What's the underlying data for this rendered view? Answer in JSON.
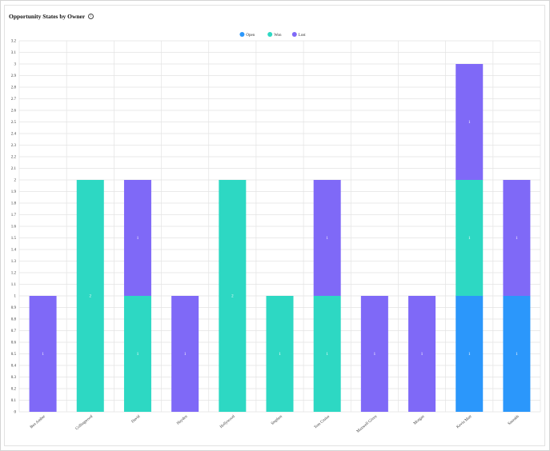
{
  "header": {
    "title": "Opportunity States by Owner"
  },
  "colors": {
    "Open": "#2b97fb",
    "Won": "#2dd8c3",
    "Lost": "#7f69f7",
    "grid": "#e3e3e3"
  },
  "icons": {
    "info": "info-circle-icon"
  },
  "chart_data": {
    "type": "bar",
    "stacked": true,
    "title": "",
    "xlabel": "",
    "ylabel": "",
    "ylim": [
      0,
      3.2
    ],
    "ytick_step": 0.1,
    "grid": true,
    "legend_position": "top-center",
    "categories": [
      "Ben Amber",
      "Collingwood",
      "David",
      "Hayden",
      "Hollywood",
      "Stephen",
      "Tom Cruise",
      "Maxwell Given",
      "Morgan",
      "Kevin Matt",
      "Saurabh"
    ],
    "series": [
      {
        "name": "Open",
        "values": [
          0,
          0,
          0,
          0,
          0,
          0,
          0,
          0,
          0,
          1,
          1
        ]
      },
      {
        "name": "Won",
        "values": [
          0,
          2,
          1,
          0,
          2,
          1,
          1,
          0,
          0,
          1,
          0
        ]
      },
      {
        "name": "Lost",
        "values": [
          1,
          0,
          1,
          1,
          0,
          0,
          1,
          1,
          1,
          1,
          1
        ]
      }
    ]
  }
}
